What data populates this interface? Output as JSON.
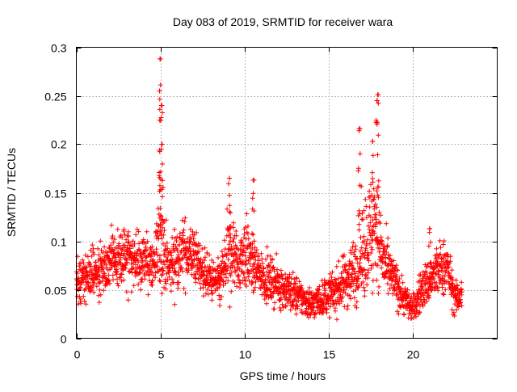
{
  "chart_data": {
    "type": "scatter",
    "title": "Day 083 of 2019, SRMTID for receiver wara",
    "xlabel": "GPS time / hours",
    "ylabel": "SRMTID / TECUs",
    "xlim": [
      0,
      25
    ],
    "ylim": [
      0,
      0.3
    ],
    "x_ticks": [
      0,
      5,
      10,
      15,
      20
    ],
    "y_ticks": [
      0,
      0.05,
      0.1,
      0.15,
      0.2,
      0.25,
      0.3
    ],
    "x_tick_labels": [
      "0",
      "5",
      "10",
      "15",
      "20"
    ],
    "y_tick_labels": [
      "0",
      "0.05",
      "0.1",
      "0.15",
      "0.2",
      "0.25",
      "0.3"
    ],
    "grid": true,
    "marker": "+",
    "series": [
      {
        "name": "SRMTID",
        "color": "#ff0000",
        "sampling_interval_hours": 0.01,
        "x_range": [
          0,
          22.9
        ],
        "profile_x": [
          0,
          0.5,
          1.0,
          1.5,
          2.0,
          2.5,
          3.0,
          3.5,
          4.0,
          4.5,
          4.8,
          5.0,
          5.2,
          5.5,
          6.0,
          6.5,
          7.0,
          7.5,
          8.0,
          8.5,
          9.0,
          9.3,
          9.6,
          10.0,
          10.5,
          11.0,
          11.5,
          12.0,
          12.5,
          13.0,
          13.5,
          14.0,
          14.5,
          15.0,
          15.5,
          16.0,
          16.5,
          17.0,
          17.5,
          17.8,
          18.0,
          18.3,
          18.7,
          19.0,
          19.5,
          20.0,
          20.5,
          21.0,
          21.5,
          22.0,
          22.5,
          22.9
        ],
        "profile_mean": [
          0.055,
          0.06,
          0.07,
          0.068,
          0.075,
          0.08,
          0.085,
          0.078,
          0.08,
          0.075,
          0.085,
          0.12,
          0.09,
          0.07,
          0.085,
          0.09,
          0.085,
          0.07,
          0.06,
          0.055,
          0.085,
          0.09,
          0.075,
          0.09,
          0.075,
          0.065,
          0.06,
          0.055,
          0.05,
          0.045,
          0.04,
          0.035,
          0.04,
          0.045,
          0.05,
          0.06,
          0.07,
          0.09,
          0.11,
          0.13,
          0.1,
          0.075,
          0.065,
          0.055,
          0.04,
          0.03,
          0.05,
          0.06,
          0.07,
          0.075,
          0.04,
          0.045
        ],
        "profile_spread": [
          0.02,
          0.02,
          0.025,
          0.02,
          0.025,
          0.025,
          0.03,
          0.025,
          0.025,
          0.025,
          0.035,
          0.06,
          0.035,
          0.025,
          0.03,
          0.03,
          0.025,
          0.02,
          0.02,
          0.02,
          0.035,
          0.035,
          0.025,
          0.035,
          0.025,
          0.02,
          0.02,
          0.02,
          0.018,
          0.018,
          0.015,
          0.015,
          0.015,
          0.018,
          0.02,
          0.025,
          0.03,
          0.045,
          0.05,
          0.06,
          0.04,
          0.03,
          0.02,
          0.02,
          0.015,
          0.012,
          0.02,
          0.02,
          0.025,
          0.025,
          0.015,
          0.015
        ],
        "peaks": [
          {
            "x": 5.0,
            "y": 0.288
          },
          {
            "x": 4.95,
            "y": 0.255
          },
          {
            "x": 5.05,
            "y": 0.24
          },
          {
            "x": 5.1,
            "y": 0.2
          },
          {
            "x": 9.1,
            "y": 0.165
          },
          {
            "x": 10.5,
            "y": 0.163
          },
          {
            "x": 16.8,
            "y": 0.216
          },
          {
            "x": 17.6,
            "y": 0.203
          },
          {
            "x": 17.9,
            "y": 0.251
          },
          {
            "x": 17.85,
            "y": 0.245
          },
          {
            "x": 21.0,
            "y": 0.113
          }
        ]
      }
    ]
  }
}
